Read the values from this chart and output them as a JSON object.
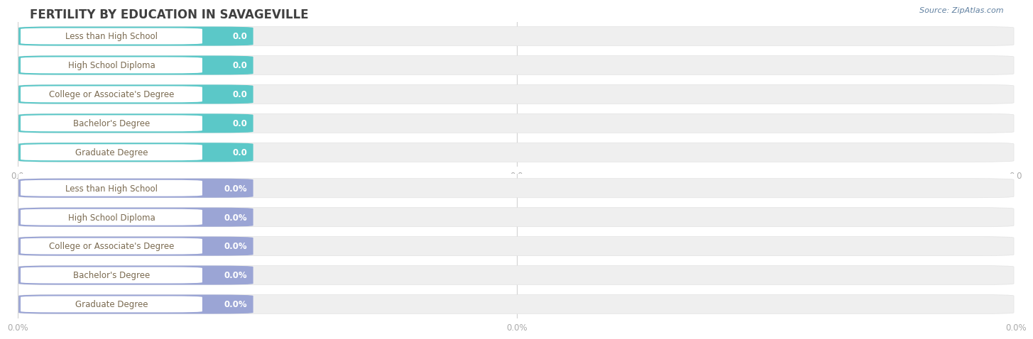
{
  "title": "FERTILITY BY EDUCATION IN SAVAGEVILLE",
  "source": "Source: ZipAtlas.com",
  "categories": [
    "Less than High School",
    "High School Diploma",
    "College or Associate's Degree",
    "Bachelor's Degree",
    "Graduate Degree"
  ],
  "values_top": [
    0.0,
    0.0,
    0.0,
    0.0,
    0.0
  ],
  "values_bottom": [
    0.0,
    0.0,
    0.0,
    0.0,
    0.0
  ],
  "bar_color_top": "#5BC8C8",
  "bar_color_bottom": "#9BA5D5",
  "bar_bg_color": "#EFEFEF",
  "background_color": "#FFFFFF",
  "title_color": "#404040",
  "label_color": "#7A6A50",
  "value_color_top": "#FFFFFF",
  "value_color_bottom": "#FFFFFF",
  "source_color": "#6080A0",
  "xtick_labels_top": [
    "0.0",
    "0.0",
    "0.0"
  ],
  "xtick_labels_bottom": [
    "0.0%",
    "0.0%",
    "0.0%"
  ],
  "xtick_color": "#AAAAAA"
}
